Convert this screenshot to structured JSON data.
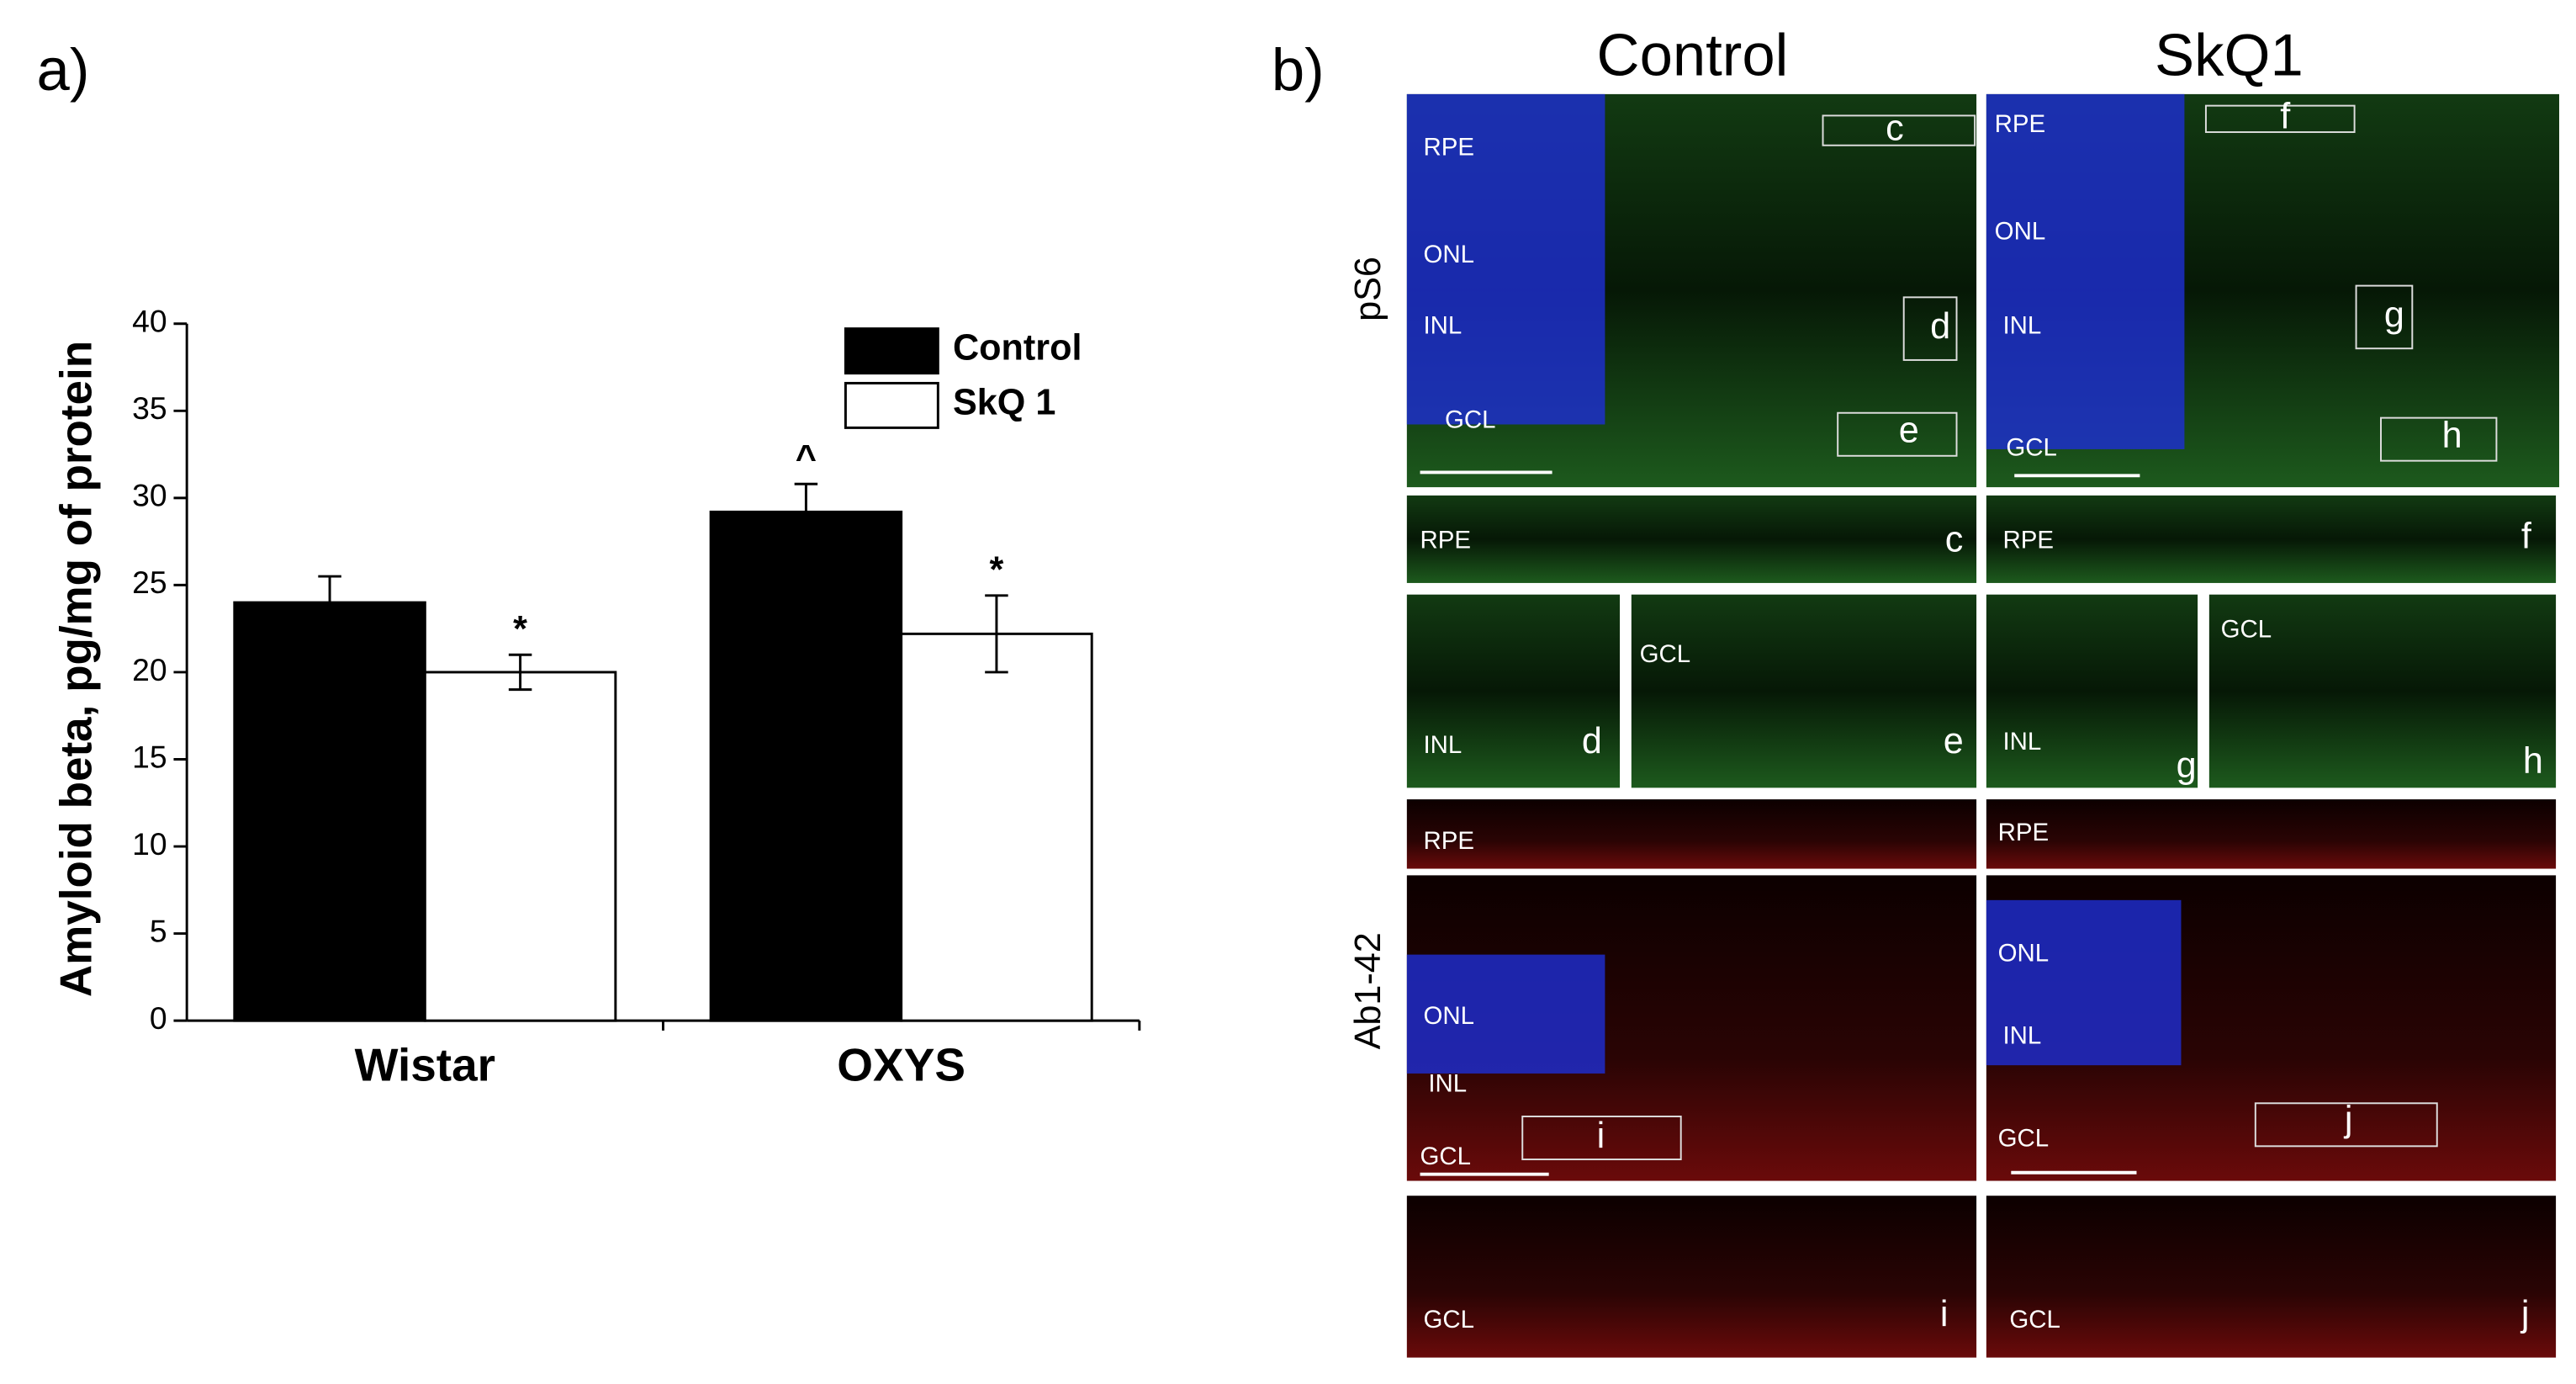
{
  "chart_data": {
    "type": "bar",
    "panel_label": "a)",
    "y_label": "Amyloid beta, pg/mg of protein",
    "categories": [
      "Wistar",
      "OXYS"
    ],
    "series": [
      {
        "name": "Control",
        "color": "#000000",
        "values": [
          24,
          29.2
        ],
        "errors": [
          1.5,
          1.6
        ],
        "markers": [
          null,
          "^"
        ]
      },
      {
        "name": "SkQ 1",
        "color": "#ffffff",
        "values": [
          20,
          22.2
        ],
        "errors": [
          1,
          2.2
        ],
        "markers": [
          "*",
          "*"
        ]
      }
    ],
    "ylim": [
      0,
      40
    ],
    "yticks": [
      0,
      5,
      10,
      15,
      20,
      25,
      30,
      35,
      40
    ],
    "legend": "upper right"
  },
  "panel_b": {
    "label": "b)",
    "columns": [
      "Control",
      "SkQ1"
    ],
    "rows": [
      "pS6",
      "Ab1-42"
    ],
    "images": [
      {
        "texts": [
          "RPE",
          "ONL",
          "INL",
          "GCL",
          "c",
          "d",
          "e"
        ]
      },
      {
        "texts": [
          "RPE",
          "ONL",
          "INL",
          "GCL",
          "f",
          "g",
          "h"
        ]
      },
      {
        "texts": [
          "RPE",
          "c"
        ]
      },
      {
        "texts": [
          "RPE",
          "f"
        ]
      },
      {
        "texts": [
          "INL",
          "d"
        ]
      },
      {
        "texts": [
          "GCL",
          "e"
        ]
      },
      {
        "texts": [
          "INL",
          "g"
        ]
      },
      {
        "texts": [
          "GCL",
          "h"
        ]
      },
      {
        "texts": [
          "RPE"
        ]
      },
      {
        "texts": [
          "RPE"
        ]
      },
      {
        "texts": [
          "ONL",
          "INL",
          "GCL",
          "i"
        ]
      },
      {
        "texts": [
          "ONL",
          "INL",
          "GCL",
          "j"
        ]
      },
      {
        "texts": [
          "GCL",
          "i"
        ]
      },
      {
        "texts": [
          "GCL",
          "j"
        ]
      }
    ]
  }
}
